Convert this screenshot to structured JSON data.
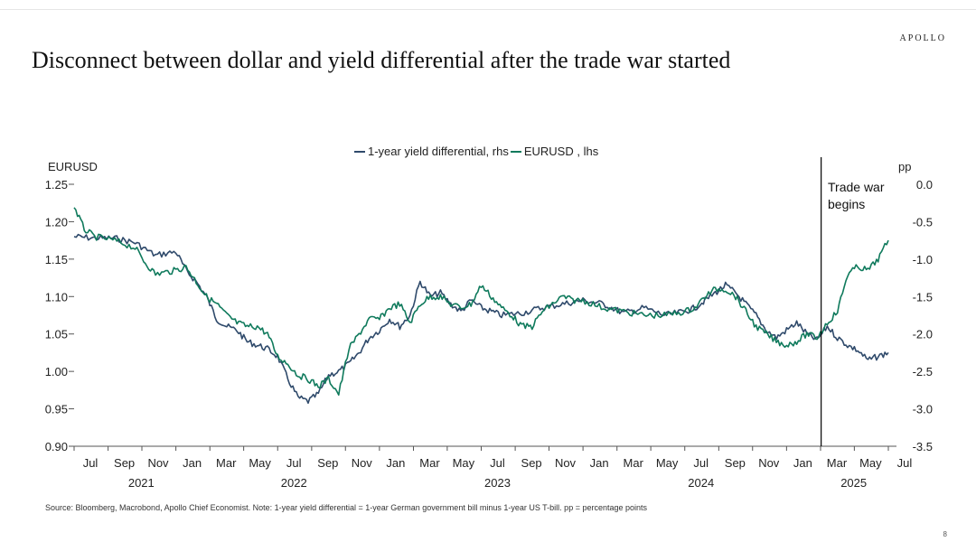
{
  "brand": "APOLLO",
  "page_number": "8",
  "footnote": "Source: Bloomberg, Macrobond, Apollo Chief Economist. Note: 1-year yield differential = 1-year German government bill minus 1-year US T-bill. pp = percentage points",
  "colors": {
    "yield_series": "#2f4a6b",
    "eurusd_series": "#0f7a5c",
    "axis": "#555555",
    "event_line": "#000000"
  },
  "chart_data": {
    "type": "line",
    "title": "Disconnect between dollar and yield differential after the trade war started",
    "left_axis": {
      "label": "EURUSD",
      "min": 0.9,
      "max": 1.25,
      "ticks": [
        "1.25",
        "1.20",
        "1.15",
        "1.10",
        "1.05",
        "1.00",
        "0.95",
        "0.90"
      ]
    },
    "right_axis": {
      "label": "pp",
      "min": -3.5,
      "max": 0.0,
      "ticks": [
        "0.0",
        "-0.5",
        "-1.0",
        "-1.5",
        "-2.0",
        "-2.5",
        "-3.0",
        "-3.5"
      ]
    },
    "x_range": [
      2021.5,
      2025.54
    ],
    "month_ticks": [
      {
        "t": 2021.5,
        "label": "Jul"
      },
      {
        "t": 2021.667,
        "label": "Sep"
      },
      {
        "t": 2021.833,
        "label": "Nov"
      },
      {
        "t": 2022.0,
        "label": "Jan"
      },
      {
        "t": 2022.167,
        "label": "Mar"
      },
      {
        "t": 2022.333,
        "label": "May"
      },
      {
        "t": 2022.5,
        "label": "Jul"
      },
      {
        "t": 2022.667,
        "label": "Sep"
      },
      {
        "t": 2022.833,
        "label": "Nov"
      },
      {
        "t": 2023.0,
        "label": "Jan"
      },
      {
        "t": 2023.167,
        "label": "Mar"
      },
      {
        "t": 2023.333,
        "label": "May"
      },
      {
        "t": 2023.5,
        "label": "Jul"
      },
      {
        "t": 2023.667,
        "label": "Sep"
      },
      {
        "t": 2023.833,
        "label": "Nov"
      },
      {
        "t": 2024.0,
        "label": "Jan"
      },
      {
        "t": 2024.167,
        "label": "Mar"
      },
      {
        "t": 2024.333,
        "label": "May"
      },
      {
        "t": 2024.5,
        "label": "Jul"
      },
      {
        "t": 2024.667,
        "label": "Sep"
      },
      {
        "t": 2024.833,
        "label": "Nov"
      },
      {
        "t": 2025.0,
        "label": "Jan"
      },
      {
        "t": 2025.167,
        "label": "Mar"
      },
      {
        "t": 2025.333,
        "label": "May"
      },
      {
        "t": 2025.5,
        "label": "Jul"
      }
    ],
    "year_labels": [
      {
        "t": 2021.75,
        "label": "2021"
      },
      {
        "t": 2022.5,
        "label": "2022"
      },
      {
        "t": 2023.5,
        "label": "2023"
      },
      {
        "t": 2024.5,
        "label": "2024"
      },
      {
        "t": 2025.25,
        "label": "2025"
      }
    ],
    "event": {
      "t": 2025.17,
      "label_line1": "Trade war",
      "label_line2": "begins"
    },
    "series": [
      {
        "name": "1-year yield differential, rhs",
        "axis": "right",
        "x": [
          2021.5,
          2021.6,
          2021.7,
          2021.8,
          2021.9,
          2022.0,
          2022.05,
          2022.1,
          2022.15,
          2022.2,
          2022.25,
          2022.3,
          2022.35,
          2022.4,
          2022.45,
          2022.5,
          2022.55,
          2022.6,
          2022.65,
          2022.7,
          2022.75,
          2022.8,
          2022.85,
          2022.9,
          2022.95,
          2023.0,
          2023.05,
          2023.1,
          2023.15,
          2023.2,
          2023.25,
          2023.3,
          2023.35,
          2023.4,
          2023.45,
          2023.5,
          2023.55,
          2023.6,
          2023.7,
          2023.8,
          2023.9,
          2024.0,
          2024.1,
          2024.2,
          2024.3,
          2024.4,
          2024.5,
          2024.55,
          2024.6,
          2024.65,
          2024.7,
          2024.75,
          2024.8,
          2024.85,
          2024.9,
          2024.95,
          2025.0,
          2025.05,
          2025.1,
          2025.15,
          2025.2,
          2025.25,
          2025.3,
          2025.35,
          2025.4,
          2025.45,
          2025.5
        ],
        "values": [
          -0.7,
          -0.72,
          -0.72,
          -0.78,
          -0.95,
          -0.9,
          -1.15,
          -1.3,
          -1.5,
          -1.8,
          -1.9,
          -1.95,
          -2.1,
          -2.15,
          -2.2,
          -2.3,
          -2.6,
          -2.85,
          -2.9,
          -2.8,
          -2.55,
          -2.5,
          -2.4,
          -2.25,
          -2.05,
          -1.95,
          -1.8,
          -1.9,
          -1.75,
          -1.3,
          -1.5,
          -1.45,
          -1.6,
          -1.7,
          -1.55,
          -1.65,
          -1.7,
          -1.75,
          -1.72,
          -1.65,
          -1.6,
          -1.55,
          -1.6,
          -1.72,
          -1.65,
          -1.75,
          -1.7,
          -1.65,
          -1.55,
          -1.45,
          -1.35,
          -1.45,
          -1.6,
          -1.75,
          -1.95,
          -2.05,
          -1.95,
          -1.85,
          -2.0,
          -2.08,
          -1.9,
          -2.05,
          -2.15,
          -2.22,
          -2.35,
          -2.3,
          -2.25
        ]
      },
      {
        "name": "EURUSD , lhs",
        "axis": "left",
        "x": [
          2021.5,
          2021.55,
          2021.6,
          2021.7,
          2021.8,
          2021.85,
          2021.9,
          2022.0,
          2022.05,
          2022.1,
          2022.15,
          2022.2,
          2022.25,
          2022.3,
          2022.35,
          2022.4,
          2022.45,
          2022.5,
          2022.55,
          2022.6,
          2022.65,
          2022.7,
          2022.75,
          2022.8,
          2022.85,
          2022.9,
          2022.95,
          2023.0,
          2023.05,
          2023.1,
          2023.15,
          2023.2,
          2023.25,
          2023.3,
          2023.35,
          2023.4,
          2023.45,
          2023.5,
          2023.55,
          2023.6,
          2023.65,
          2023.7,
          2023.75,
          2023.8,
          2023.85,
          2023.9,
          2023.95,
          2024.0,
          2024.1,
          2024.2,
          2024.3,
          2024.4,
          2024.5,
          2024.55,
          2024.6,
          2024.65,
          2024.7,
          2024.75,
          2024.8,
          2024.85,
          2024.9,
          2024.95,
          2025.0,
          2025.05,
          2025.1,
          2025.15,
          2025.2,
          2025.25,
          2025.3,
          2025.35,
          2025.4,
          2025.45,
          2025.5
        ],
        "values": [
          1.22,
          1.19,
          1.18,
          1.175,
          1.165,
          1.145,
          1.13,
          1.135,
          1.14,
          1.12,
          1.1,
          1.09,
          1.075,
          1.065,
          1.06,
          1.06,
          1.05,
          1.02,
          1.01,
          0.995,
          0.99,
          0.98,
          0.99,
          0.97,
          1.03,
          1.05,
          1.07,
          1.07,
          1.085,
          1.09,
          1.065,
          1.09,
          1.1,
          1.1,
          1.09,
          1.085,
          1.09,
          1.115,
          1.1,
          1.085,
          1.075,
          1.06,
          1.06,
          1.08,
          1.09,
          1.1,
          1.095,
          1.095,
          1.085,
          1.08,
          1.075,
          1.075,
          1.08,
          1.085,
          1.1,
          1.11,
          1.11,
          1.1,
          1.08,
          1.06,
          1.05,
          1.04,
          1.035,
          1.04,
          1.05,
          1.045,
          1.065,
          1.08,
          1.13,
          1.14,
          1.135,
          1.15,
          1.175
        ]
      }
    ]
  }
}
